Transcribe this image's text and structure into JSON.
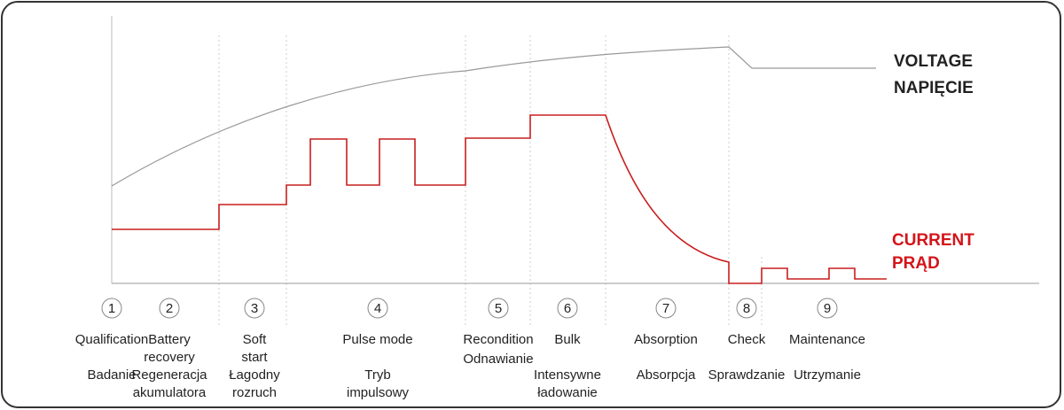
{
  "legend": {
    "voltage": [
      "VOLTAGE",
      "NAPIĘCIE"
    ],
    "current": [
      "CURRENT",
      "PRĄD"
    ]
  },
  "stages": [
    {
      "number": "1",
      "en": [
        "Qualification"
      ],
      "pl": [
        "Badanie"
      ]
    },
    {
      "number": "2",
      "en": [
        "Battery",
        "recovery"
      ],
      "pl": [
        "Regeneracja",
        "akumulatora"
      ]
    },
    {
      "number": "3",
      "en": [
        "Soft",
        "start"
      ],
      "pl": [
        "Łagodny",
        "rozruch"
      ]
    },
    {
      "number": "4",
      "en": [
        "Pulse mode"
      ],
      "pl": [
        "Tryb",
        "impulsowy"
      ]
    },
    {
      "number": "5",
      "en": [
        "Recondition"
      ],
      "pl": [
        "Odnawianie"
      ]
    },
    {
      "number": "6",
      "en": [
        "Bulk"
      ],
      "pl": [
        "Intensywne",
        "ładowanie"
      ]
    },
    {
      "number": "7",
      "en": [
        "Absorption"
      ],
      "pl": [
        "Absorpcja"
      ]
    },
    {
      "number": "8",
      "en": [
        "Check"
      ],
      "pl": [
        "Sprawdzanie"
      ]
    },
    {
      "number": "9",
      "en": [
        "Maintenance"
      ],
      "pl": [
        "Utrzymanie"
      ]
    }
  ]
}
